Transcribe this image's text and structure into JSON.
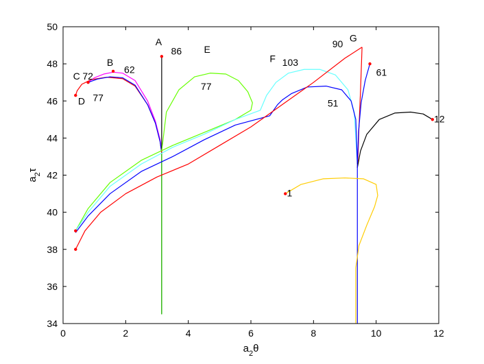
{
  "chart_data": {
    "type": "line",
    "title": "",
    "xlabel": "a_2θ",
    "ylabel": "a_2τ",
    "xlim": [
      0,
      12
    ],
    "ylim": [
      34,
      50
    ],
    "xticks": [
      0,
      2,
      4,
      6,
      8,
      10,
      12
    ],
    "yticks": [
      34,
      36,
      38,
      40,
      42,
      44,
      46,
      48,
      50
    ],
    "grid": false,
    "legend": "none",
    "series": [
      {
        "color": "#ff0000",
        "x": [
          0.4,
          0.45,
          0.6,
          0.9,
          1.4,
          1.9,
          2.3,
          2.7,
          2.95,
          3.1,
          3.15
        ],
        "y": [
          46.3,
          46.55,
          46.9,
          47.15,
          47.28,
          47.2,
          46.8,
          45.8,
          44.8,
          43.8,
          43.2
        ]
      },
      {
        "color": "#ff00ff",
        "x": [
          0.8,
          1.0,
          1.3,
          1.6,
          1.9,
          2.3,
          2.7,
          2.95,
          3.1,
          3.15
        ],
        "y": [
          47.0,
          47.25,
          47.45,
          47.55,
          47.5,
          47.1,
          46.0,
          44.9,
          43.9,
          43.2
        ]
      },
      {
        "color": "#0000ff",
        "x": [
          0.8,
          1.1,
          1.5,
          1.9,
          2.3,
          2.7,
          2.95,
          3.1,
          3.15
        ],
        "y": [
          47.0,
          47.18,
          47.3,
          47.25,
          46.85,
          45.8,
          44.8,
          43.8,
          43.2
        ]
      },
      {
        "color": "#000000",
        "x": [
          3.15,
          3.15,
          3.15
        ],
        "y": [
          48.4,
          45.0,
          43.2
        ]
      },
      {
        "color": "#ff0000",
        "x": [
          3.15,
          3.15
        ],
        "y": [
          43.4,
          34.5
        ]
      },
      {
        "color": "#00cc00",
        "x": [
          3.15,
          3.15
        ],
        "y": [
          43.2,
          34.5
        ]
      },
      {
        "color": "#66ff00",
        "x": [
          3.15,
          3.3,
          3.7,
          4.2,
          4.7,
          5.2,
          5.6,
          5.9,
          6.05,
          6.0,
          5.5,
          4.5,
          3.5,
          2.5,
          1.5,
          0.8,
          0.4
        ],
        "y": [
          43.3,
          45.4,
          46.6,
          47.3,
          47.5,
          47.45,
          47.1,
          46.5,
          45.9,
          45.5,
          45.0,
          44.3,
          43.6,
          42.8,
          41.6,
          40.2,
          39.0
        ]
      },
      {
        "color": "#66ffff",
        "x": [
          9.4,
          9.3,
          9.1,
          8.7,
          8.2,
          7.7,
          7.2,
          6.8,
          6.5,
          6.3,
          5.5,
          4.5,
          3.5,
          2.5,
          1.5,
          0.8,
          0.4
        ],
        "y": [
          42.6,
          45.4,
          46.6,
          47.4,
          47.7,
          47.7,
          47.5,
          47.0,
          46.3,
          45.5,
          45.0,
          44.2,
          43.5,
          42.6,
          41.4,
          40.0,
          39.0
        ]
      },
      {
        "color": "#0000ff",
        "x": [
          9.4,
          9.35,
          9.2,
          8.9,
          8.4,
          7.8,
          7.3,
          7.0,
          6.85,
          6.6,
          5.5,
          4.5,
          3.5,
          2.5,
          1.5,
          0.8,
          0.4
        ],
        "y": [
          42.6,
          45.0,
          46.0,
          46.6,
          46.8,
          46.75,
          46.4,
          46.05,
          45.8,
          45.2,
          44.7,
          43.9,
          43.0,
          42.2,
          41.0,
          39.8,
          38.9
        ]
      },
      {
        "color": "#ff0000",
        "x": [
          0.4,
          0.7,
          1.2,
          2.0,
          3.0,
          4.0,
          5.0,
          6.0,
          7.0,
          8.0,
          9.0,
          9.55
        ],
        "y": [
          38.0,
          39.0,
          40.0,
          41.0,
          41.9,
          42.6,
          43.6,
          44.6,
          45.8,
          47.0,
          48.3,
          48.9
        ]
      },
      {
        "color": "#ff0000",
        "x": [
          9.55,
          9.5,
          9.45,
          9.42,
          9.4
        ],
        "y": [
          48.9,
          46.5,
          44.5,
          43.0,
          42.4
        ]
      },
      {
        "color": "#0000ff",
        "x": [
          9.8,
          9.65,
          9.52,
          9.44,
          9.4
        ],
        "y": [
          48.0,
          47.1,
          45.9,
          44.4,
          42.6
        ]
      },
      {
        "color": "#000000",
        "x": [
          11.8,
          11.5,
          11.1,
          10.6,
          10.1,
          9.7,
          9.5,
          9.4
        ],
        "y": [
          45.0,
          45.3,
          45.4,
          45.35,
          45.0,
          44.2,
          43.3,
          42.4
        ]
      },
      {
        "color": "#0000ff",
        "x": [
          9.4,
          9.4,
          9.4
        ],
        "y": [
          42.6,
          38.0,
          34.0
        ]
      },
      {
        "color": "#ffcc00",
        "x": [
          7.1,
          7.6,
          8.3,
          9.0,
          9.6,
          10.0,
          10.05,
          9.95,
          9.7,
          9.45,
          9.35,
          9.35,
          9.35
        ],
        "y": [
          41.0,
          41.5,
          41.8,
          41.85,
          41.8,
          41.5,
          40.9,
          40.3,
          39.3,
          38.2,
          37.0,
          35.5,
          34.0
        ]
      }
    ],
    "points": [
      {
        "x": 3.15,
        "y": 48.4
      },
      {
        "x": 0.4,
        "y": 46.3
      },
      {
        "x": 0.8,
        "y": 47.0
      },
      {
        "x": 1.6,
        "y": 47.6
      },
      {
        "x": 9.8,
        "y": 48.0
      },
      {
        "x": 11.8,
        "y": 45.0
      },
      {
        "x": 7.1,
        "y": 41.0
      },
      {
        "x": 0.4,
        "y": 39.0
      },
      {
        "x": 0.4,
        "y": 38.0
      }
    ],
    "annotations": [
      {
        "text": "A",
        "x": 2.95,
        "y": 49.0
      },
      {
        "text": "86",
        "x": 3.45,
        "y": 48.5
      },
      {
        "text": "E",
        "x": 4.5,
        "y": 48.6
      },
      {
        "text": "B",
        "x": 1.4,
        "y": 47.9
      },
      {
        "text": "62",
        "x": 1.95,
        "y": 47.5
      },
      {
        "text": "C",
        "x": 0.32,
        "y": 47.15
      },
      {
        "text": "72",
        "x": 0.62,
        "y": 47.15
      },
      {
        "text": "D",
        "x": 0.48,
        "y": 45.8
      },
      {
        "text": "77",
        "x": 0.95,
        "y": 46.0
      },
      {
        "text": "77",
        "x": 4.4,
        "y": 46.6
      },
      {
        "text": "F",
        "x": 6.6,
        "y": 48.1
      },
      {
        "text": "103",
        "x": 7.0,
        "y": 47.9
      },
      {
        "text": "90",
        "x": 8.6,
        "y": 48.9
      },
      {
        "text": "G",
        "x": 9.15,
        "y": 49.2
      },
      {
        "text": "61",
        "x": 10.0,
        "y": 47.35
      },
      {
        "text": "51",
        "x": 8.45,
        "y": 45.7
      },
      {
        "text": "12",
        "x": 11.85,
        "y": 44.85
      },
      {
        "text": "1",
        "x": 7.15,
        "y": 40.85
      }
    ]
  }
}
